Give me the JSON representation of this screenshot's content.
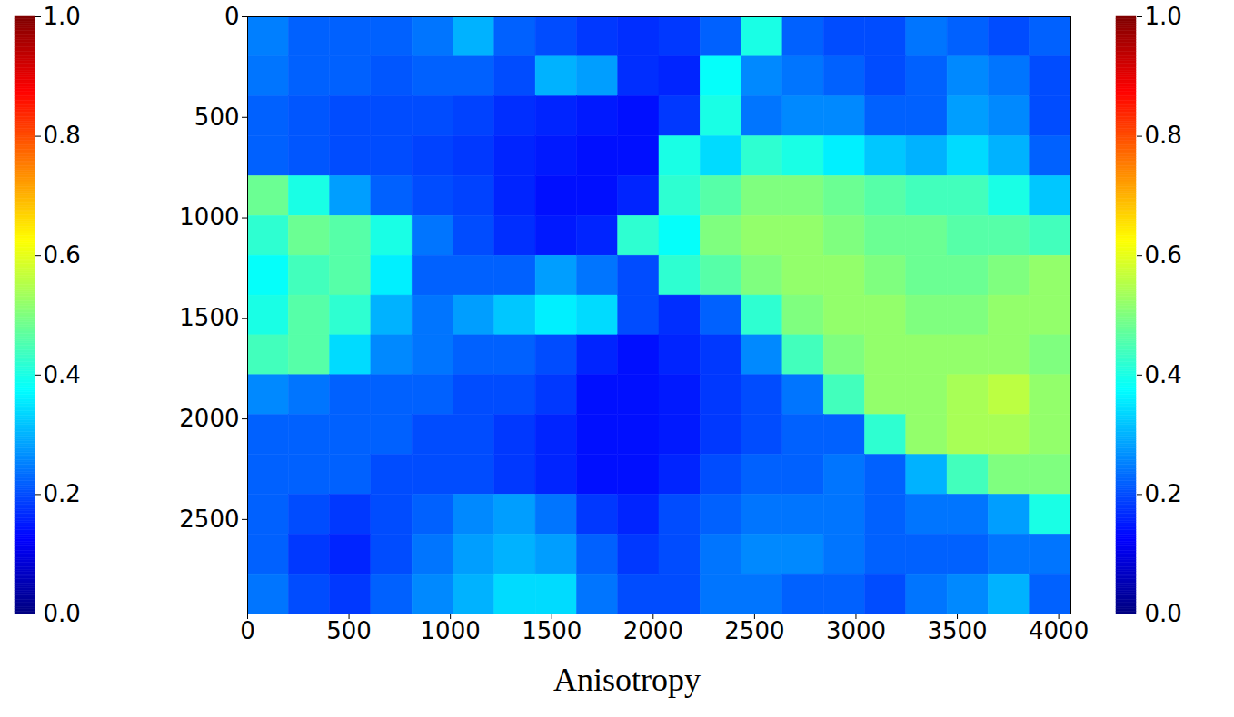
{
  "chart_data": {
    "type": "heatmap",
    "xlabel": "Anisotropy",
    "xlim": [
      0,
      4060
    ],
    "ylim": [
      2970,
      0
    ],
    "xticks": [
      0,
      500,
      1000,
      1500,
      2000,
      2500,
      3000,
      3500,
      4000
    ],
    "yticks": [
      0,
      500,
      1000,
      1500,
      2000,
      2500
    ],
    "cells": {
      "z": [
        [
          0.25,
          0.22,
          0.22,
          0.22,
          0.24,
          0.3,
          0.22,
          0.2,
          0.18,
          0.17,
          0.18,
          0.22,
          0.4,
          0.22,
          0.2,
          0.2,
          0.24,
          0.22,
          0.2,
          0.22
        ],
        [
          0.24,
          0.22,
          0.22,
          0.21,
          0.22,
          0.22,
          0.2,
          0.3,
          0.28,
          0.17,
          0.16,
          0.38,
          0.26,
          0.24,
          0.22,
          0.2,
          0.22,
          0.26,
          0.24,
          0.2
        ],
        [
          0.22,
          0.21,
          0.2,
          0.2,
          0.2,
          0.19,
          0.17,
          0.16,
          0.15,
          0.14,
          0.18,
          0.4,
          0.24,
          0.26,
          0.26,
          0.22,
          0.22,
          0.28,
          0.26,
          0.2
        ],
        [
          0.22,
          0.21,
          0.2,
          0.2,
          0.19,
          0.18,
          0.16,
          0.15,
          0.14,
          0.14,
          0.4,
          0.34,
          0.42,
          0.4,
          0.36,
          0.32,
          0.3,
          0.34,
          0.3,
          0.22
        ],
        [
          0.48,
          0.4,
          0.28,
          0.22,
          0.2,
          0.19,
          0.16,
          0.14,
          0.14,
          0.16,
          0.42,
          0.46,
          0.5,
          0.5,
          0.48,
          0.46,
          0.44,
          0.44,
          0.4,
          0.32
        ],
        [
          0.42,
          0.48,
          0.46,
          0.4,
          0.24,
          0.2,
          0.17,
          0.15,
          0.16,
          0.42,
          0.38,
          0.5,
          0.52,
          0.52,
          0.5,
          0.48,
          0.48,
          0.46,
          0.46,
          0.44
        ],
        [
          0.38,
          0.44,
          0.46,
          0.36,
          0.22,
          0.22,
          0.22,
          0.28,
          0.24,
          0.2,
          0.42,
          0.46,
          0.5,
          0.52,
          0.52,
          0.5,
          0.48,
          0.48,
          0.5,
          0.52
        ],
        [
          0.4,
          0.46,
          0.42,
          0.3,
          0.24,
          0.28,
          0.32,
          0.36,
          0.34,
          0.2,
          0.17,
          0.22,
          0.42,
          0.5,
          0.52,
          0.52,
          0.5,
          0.5,
          0.52,
          0.52
        ],
        [
          0.44,
          0.46,
          0.34,
          0.26,
          0.24,
          0.22,
          0.22,
          0.2,
          0.16,
          0.14,
          0.16,
          0.18,
          0.26,
          0.44,
          0.5,
          0.52,
          0.52,
          0.52,
          0.52,
          0.5
        ],
        [
          0.26,
          0.24,
          0.22,
          0.22,
          0.22,
          0.2,
          0.2,
          0.18,
          0.14,
          0.14,
          0.15,
          0.18,
          0.2,
          0.24,
          0.44,
          0.52,
          0.52,
          0.54,
          0.56,
          0.52
        ],
        [
          0.22,
          0.22,
          0.22,
          0.22,
          0.2,
          0.2,
          0.18,
          0.16,
          0.14,
          0.14,
          0.15,
          0.18,
          0.2,
          0.22,
          0.22,
          0.42,
          0.52,
          0.54,
          0.54,
          0.52
        ],
        [
          0.22,
          0.22,
          0.22,
          0.2,
          0.2,
          0.2,
          0.18,
          0.16,
          0.14,
          0.14,
          0.16,
          0.2,
          0.22,
          0.22,
          0.24,
          0.22,
          0.3,
          0.44,
          0.5,
          0.5
        ],
        [
          0.22,
          0.2,
          0.18,
          0.2,
          0.22,
          0.26,
          0.28,
          0.24,
          0.18,
          0.16,
          0.2,
          0.22,
          0.24,
          0.24,
          0.24,
          0.22,
          0.24,
          0.24,
          0.28,
          0.4
        ],
        [
          0.22,
          0.18,
          0.16,
          0.2,
          0.24,
          0.28,
          0.3,
          0.28,
          0.22,
          0.18,
          0.2,
          0.24,
          0.26,
          0.26,
          0.24,
          0.22,
          0.22,
          0.22,
          0.24,
          0.24
        ],
        [
          0.24,
          0.2,
          0.18,
          0.22,
          0.26,
          0.3,
          0.34,
          0.34,
          0.24,
          0.2,
          0.2,
          0.24,
          0.24,
          0.22,
          0.22,
          0.2,
          0.24,
          0.26,
          0.3,
          0.22
        ]
      ]
    },
    "colorbar": {
      "range": [
        0,
        1
      ],
      "ticks": [
        {
          "value": 0,
          "label": "0.0"
        },
        {
          "value": 0.2,
          "label": "0.2"
        },
        {
          "value": 0.4,
          "label": "0.4"
        },
        {
          "value": 0.6,
          "label": "0.6"
        },
        {
          "value": 0.8,
          "label": "0.8"
        },
        {
          "value": 1,
          "label": "1.0"
        }
      ]
    }
  }
}
